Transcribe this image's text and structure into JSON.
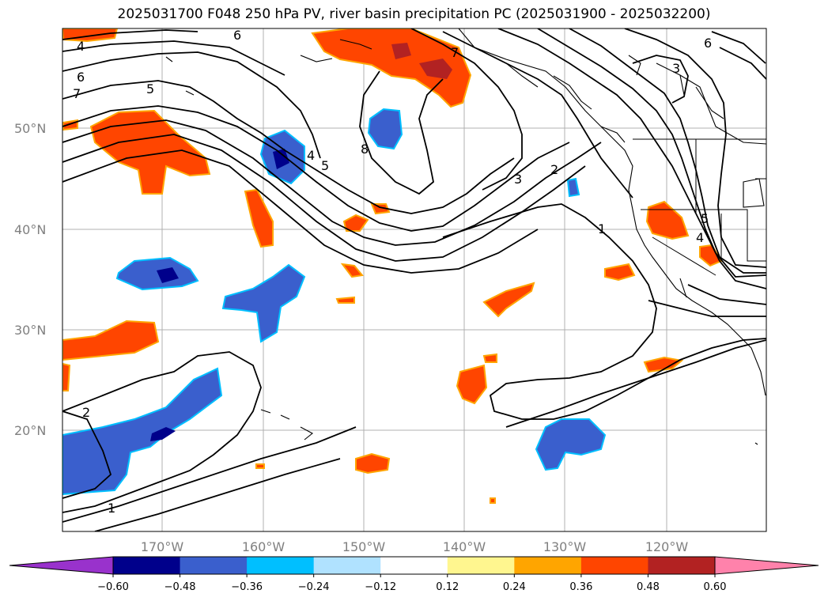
{
  "title": "2025031700 F048 250 hPa PV, river basin precipitation PC (2025031900 - 2025032200)",
  "lat_labels": [
    "50°N",
    "40°N",
    "30°N",
    "20°N"
  ],
  "lon_labels": [
    "170°W",
    "160°W",
    "150°W",
    "140°W",
    "130°W",
    "120°W"
  ],
  "colorbar": {
    "ticks": [
      "−0.60",
      "−0.48",
      "−0.36",
      "−0.24",
      "−0.12",
      "0.12",
      "0.24",
      "0.36",
      "0.48",
      "0.60"
    ],
    "colors": [
      "#9932cc",
      "#00008b",
      "#3a5fcd",
      "#00bfff",
      "#b0e2ff",
      "#ffffff",
      "#fff68f",
      "#ffa500",
      "#ff4500",
      "#b22222",
      "#ff82ab"
    ]
  },
  "contour_labels": [
    "4",
    "6",
    "7",
    "5",
    "6",
    "3",
    "6",
    "7",
    "4",
    "5",
    "8",
    "3",
    "2",
    "1",
    "5",
    "4",
    "2",
    "1"
  ]
}
